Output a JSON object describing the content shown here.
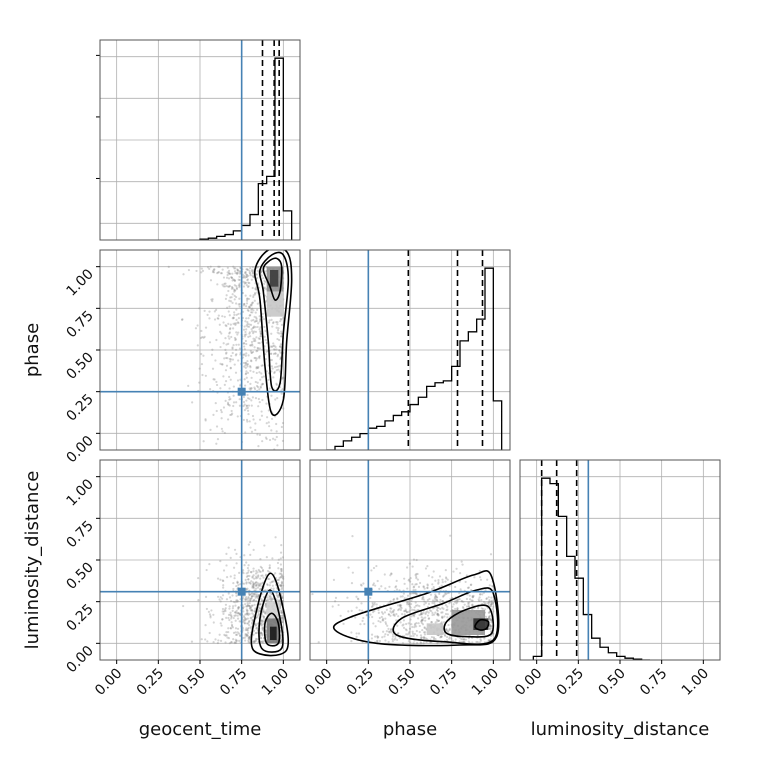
{
  "chart_data": {
    "type": "corner",
    "parameters": [
      "geocent_time",
      "phase",
      "luminosity_distance"
    ],
    "axis_range": [
      -0.1,
      1.1
    ],
    "tick_labels": [
      "0.00",
      "0.25",
      "0.50",
      "0.75",
      "1.00"
    ],
    "grid": true,
    "truths": {
      "geocent_time": 0.75,
      "phase": 0.25,
      "luminosity_distance": 0.31
    },
    "colors": {
      "truth": "#4682b4",
      "hist": "#000000",
      "scatter": "#888888",
      "grid": "#b0b0b0"
    },
    "diagonals": [
      {
        "parameter": "geocent_time",
        "quantiles": [
          0.875,
          0.945,
          0.975
        ],
        "bin_edges": [
          0.5,
          0.55,
          0.6,
          0.65,
          0.7,
          0.75,
          0.8,
          0.85,
          0.9,
          0.95,
          1.0,
          1.05
        ],
        "counts": [
          0.005,
          0.01,
          0.02,
          0.03,
          0.05,
          0.08,
          0.14,
          0.31,
          0.35,
          1.0,
          0.16
        ]
      },
      {
        "parameter": "phase",
        "quantiles": [
          0.49,
          0.785,
          0.935
        ],
        "bin_edges": [
          0.0,
          0.05,
          0.1,
          0.15,
          0.2,
          0.25,
          0.3,
          0.35,
          0.4,
          0.45,
          0.5,
          0.55,
          0.6,
          0.65,
          0.7,
          0.75,
          0.8,
          0.85,
          0.9,
          0.95,
          1.0,
          1.05
        ],
        "counts": [
          0.0,
          0.02,
          0.05,
          0.07,
          0.09,
          0.12,
          0.13,
          0.16,
          0.19,
          0.21,
          0.25,
          0.29,
          0.35,
          0.37,
          0.38,
          0.46,
          0.6,
          0.65,
          0.72,
          1.0,
          0.27
        ]
      },
      {
        "parameter": "luminosity_distance",
        "quantiles": [
          0.03,
          0.12,
          0.24
        ],
        "bin_edges": [
          -0.02,
          0.03,
          0.08,
          0.13,
          0.18,
          0.23,
          0.28,
          0.33,
          0.38,
          0.43,
          0.48,
          0.53,
          0.58,
          0.63,
          0.68
        ],
        "counts": [
          0.02,
          1.0,
          0.97,
          0.79,
          0.57,
          0.45,
          0.25,
          0.12,
          0.07,
          0.04,
          0.02,
          0.01,
          0.005,
          0.0
        ]
      }
    ],
    "joint": [
      {
        "x_param": "geocent_time",
        "y_param": "phase",
        "scatter_center": [
          0.8,
          0.6
        ],
        "scatter_spread": [
          0.14,
          0.35
        ],
        "density_cells": [
          {
            "x": [
              0.9,
              1.0
            ],
            "y": [
              0.85,
              1.0
            ],
            "level": 0.5
          },
          {
            "x": [
              0.92,
              0.97
            ],
            "y": [
              0.88,
              0.98
            ],
            "level": 0.85
          },
          {
            "x": [
              0.9,
              1.0
            ],
            "y": [
              0.7,
              0.85
            ],
            "level": 0.25
          }
        ],
        "contours": [
          [
            [
              0.91,
              1.03
            ],
            [
              0.96,
              1.05
            ],
            [
              0.99,
              1.0
            ],
            [
              0.98,
              0.85
            ],
            [
              0.95,
              0.8
            ],
            [
              0.92,
              0.88
            ],
            [
              0.88,
              0.98
            ]
          ],
          [
            [
              0.86,
              0.98
            ],
            [
              0.93,
              1.07
            ],
            [
              1.0,
              1.07
            ],
            [
              1.03,
              0.92
            ],
            [
              1.0,
              0.6
            ],
            [
              0.98,
              0.3
            ],
            [
              0.93,
              0.28
            ],
            [
              0.91,
              0.55
            ],
            [
              0.88,
              0.85
            ]
          ],
          [
            [
              0.83,
              0.98
            ],
            [
              0.91,
              1.1
            ],
            [
              1.02,
              1.09
            ],
            [
              1.05,
              0.92
            ],
            [
              1.02,
              0.55
            ],
            [
              1.0,
              0.2
            ],
            [
              0.93,
              0.12
            ],
            [
              0.89,
              0.4
            ],
            [
              0.86,
              0.8
            ]
          ]
        ]
      },
      {
        "x_param": "geocent_time",
        "y_param": "luminosity_distance",
        "scatter_center": [
          0.85,
          0.2
        ],
        "scatter_spread": [
          0.12,
          0.15
        ],
        "density_cells": [
          {
            "x": [
              0.9,
              0.98
            ],
            "y": [
              0.0,
              0.15
            ],
            "level": 0.6
          },
          {
            "x": [
              0.92,
              0.96
            ],
            "y": [
              0.02,
              0.1
            ],
            "level": 1.0
          },
          {
            "x": [
              0.9,
              0.98
            ],
            "y": [
              0.15,
              0.25
            ],
            "level": 0.2
          }
        ],
        "contours": [
          [
            [
              0.9,
              0.0
            ],
            [
              0.89,
              0.12
            ],
            [
              0.93,
              0.18
            ],
            [
              0.97,
              0.12
            ],
            [
              0.97,
              0.0
            ]
          ],
          [
            [
              0.87,
              -0.03
            ],
            [
              0.86,
              0.15
            ],
            [
              0.92,
              0.32
            ],
            [
              0.98,
              0.15
            ],
            [
              0.99,
              -0.03
            ]
          ],
          [
            [
              0.82,
              -0.04
            ],
            [
              0.84,
              0.2
            ],
            [
              0.92,
              0.42
            ],
            [
              0.99,
              0.25
            ],
            [
              1.02,
              -0.04
            ]
          ]
        ]
      },
      {
        "x_param": "phase",
        "y_param": "luminosity_distance",
        "scatter_center": [
          0.65,
          0.18
        ],
        "scatter_spread": [
          0.25,
          0.13
        ],
        "density_cells": [
          {
            "x": [
              0.6,
              0.7
            ],
            "y": [
              0.05,
              0.12
            ],
            "level": 0.25
          },
          {
            "x": [
              0.75,
              0.95
            ],
            "y": [
              0.05,
              0.2
            ],
            "level": 0.45
          },
          {
            "x": [
              0.88,
              0.97
            ],
            "y": [
              0.08,
              0.15
            ],
            "level": 0.9
          }
        ],
        "contours": [
          [
            [
              0.89,
              0.1
            ],
            [
              0.92,
              0.14
            ],
            [
              0.97,
              0.13
            ],
            [
              0.96,
              0.09
            ],
            [
              0.92,
              0.08
            ]
          ],
          [
            [
              0.72,
              0.06
            ],
            [
              0.72,
              0.13
            ],
            [
              0.83,
              0.2
            ],
            [
              0.97,
              0.22
            ],
            [
              0.99,
              0.06
            ],
            [
              0.85,
              0.04
            ]
          ],
          [
            [
              0.42,
              0.05
            ],
            [
              0.45,
              0.15
            ],
            [
              0.7,
              0.24
            ],
            [
              0.9,
              0.32
            ],
            [
              1.0,
              0.3
            ],
            [
              1.0,
              0.02
            ],
            [
              0.7,
              0.01
            ]
          ],
          [
            [
              0.05,
              0.08
            ],
            [
              0.15,
              0.16
            ],
            [
              0.6,
              0.3
            ],
            [
              0.88,
              0.41
            ],
            [
              0.99,
              0.4
            ],
            [
              1.02,
              0.04
            ],
            [
              0.8,
              -0.01
            ],
            [
              0.3,
              0.0
            ]
          ]
        ]
      }
    ]
  }
}
